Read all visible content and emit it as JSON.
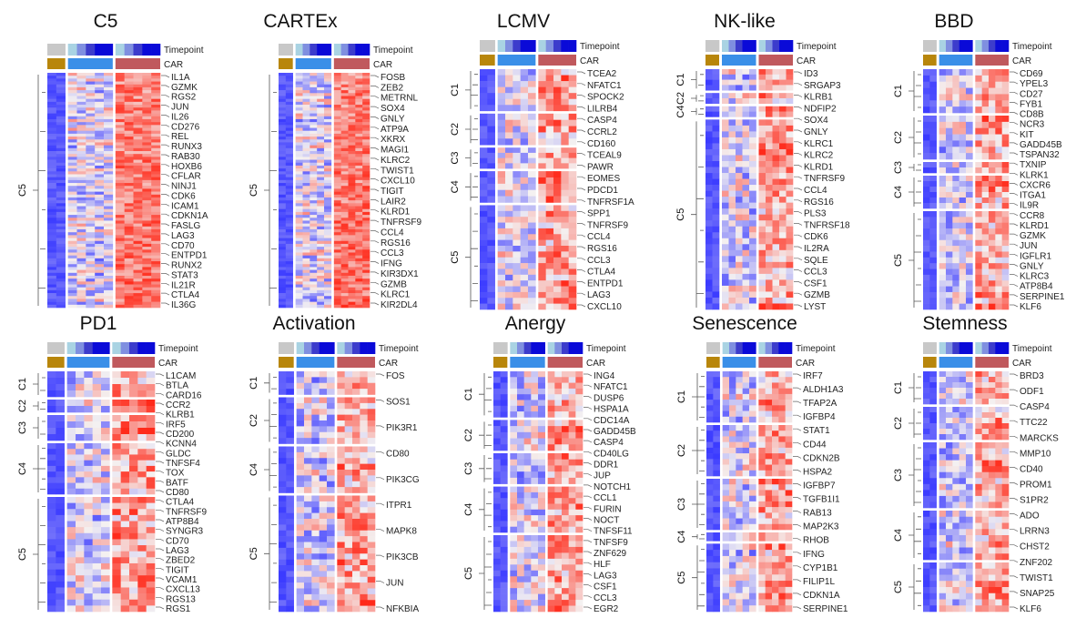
{
  "legend": {
    "timepoint": "Timepoint",
    "car": "CAR"
  },
  "colors": {
    "low": "#3b3bff",
    "mid": "#f4f1f1",
    "high": "#ff2a1a",
    "timepoint": [
      "#c8c8c8",
      "#a9d3e3",
      "#7f8fe0",
      "#3c3ccc",
      "#0a0ad8"
    ],
    "car": [
      "#b8860b",
      "#3a8fe8",
      "#c0595d"
    ]
  },
  "panels": [
    {
      "title": "C5",
      "clusters": [
        {
          "name": "C5",
          "weight": 1
        }
      ],
      "genes": [
        "IL1A",
        "GZMK",
        "RGS2",
        "JUN",
        "IL26",
        "CD276",
        "REL",
        "RUNX3",
        "RAB30",
        "HOXB6",
        "CFLAR",
        "NINJ1",
        "CDK6",
        "ICAM1",
        "CDKN1A",
        "FASLG",
        "LAG3",
        "CD70",
        "ENTPD1",
        "RUNX2",
        "STAT3",
        "IL21R",
        "CTLA4",
        "IL36G"
      ]
    },
    {
      "title": "CARTEx",
      "clusters": [
        {
          "name": "C5",
          "weight": 1
        }
      ],
      "genes": [
        "FOSB",
        "ZEB2",
        "METRNL",
        "SOX4",
        "GNLY",
        "ATP9A",
        "XKRX",
        "MAGI1",
        "KLRC2",
        "TWIST1",
        "CXCL10",
        "TIGIT",
        "LAIR2",
        "KLRD1",
        "TNFRSF9",
        "CCL4",
        "RGS16",
        "CCL3",
        "IFNG",
        "KIR3DX1",
        "GZMB",
        "KLRC1",
        "KIR2DL4"
      ]
    },
    {
      "title": "LCMV",
      "clusters": [
        {
          "name": "C1",
          "weight": 4
        },
        {
          "name": "C2",
          "weight": 3
        },
        {
          "name": "C3",
          "weight": 2
        },
        {
          "name": "C4",
          "weight": 3
        },
        {
          "name": "C5",
          "weight": 10
        }
      ],
      "genes": [
        "TCEA2",
        "NFATC1",
        "SPOCK2",
        "LILRB4",
        "CASP4",
        "CCRL2",
        "CD160",
        "TCEAL9",
        "PAWR",
        "EOMES",
        "PDCD1",
        "TNFRSF1A",
        "SPP1",
        "TNFRSF9",
        "CCL4",
        "RGS16",
        "CCL3",
        "CTLA4",
        "ENTPD1",
        "LAG3",
        "CXCL10"
      ]
    },
    {
      "title": "NK-like",
      "clusters": [
        {
          "name": "C1",
          "weight": 2
        },
        {
          "name": "C2",
          "weight": 1
        },
        {
          "name": "C4",
          "weight": 1
        },
        {
          "name": "C5",
          "weight": 18
        }
      ],
      "genes": [
        "ID3",
        "SRGAP3",
        "KLRB1",
        "NDFIP2",
        "SOX4",
        "GNLY",
        "KLRC1",
        "KLRC2",
        "KLRD1",
        "TNFRSF9",
        "CCL4",
        "RGS16",
        "PLS3",
        "TNFRSF18",
        "CDK6",
        "IL2RA",
        "SQLE",
        "CCL3",
        "CSF1",
        "GZMB",
        "LYST"
      ]
    },
    {
      "title": "BBD",
      "clusters": [
        {
          "name": "C1",
          "weight": 4
        },
        {
          "name": "C2",
          "weight": 4
        },
        {
          "name": "C3",
          "weight": 1
        },
        {
          "name": "C4",
          "weight": 3
        },
        {
          "name": "C5",
          "weight": 9
        }
      ],
      "genes": [
        "CD69",
        "YPEL3",
        "CD27",
        "FYB1",
        "CD8B",
        "NCR3",
        "KIT",
        "GADD45B",
        "TSPAN32",
        "TXNIP",
        "KLRK1",
        "CXCR6",
        "ITGA1",
        "IL9R",
        "CCR8",
        "KLRD1",
        "GZMK",
        "JUN",
        "IGFLR1",
        "GNLY",
        "KLRC3",
        "ATP8B4",
        "SERPINE1",
        "KLF6"
      ]
    },
    {
      "title": "PD1",
      "clusters": [
        {
          "name": "C1",
          "weight": 2
        },
        {
          "name": "C2",
          "weight": 1
        },
        {
          "name": "C3",
          "weight": 2
        },
        {
          "name": "C4",
          "weight": 4
        },
        {
          "name": "C5",
          "weight": 9
        }
      ],
      "genes": [
        "L1CAM",
        "BTLA",
        "CARD16",
        "CCR2",
        "KLRB1",
        "IRF5",
        "CD200",
        "KCNN4",
        "GLDC",
        "TNFSF4",
        "TOX",
        "BATF",
        "CD80",
        "CTLA4",
        "TNFRSF9",
        "ATP8B4",
        "SYNGR3",
        "CD70",
        "LAG3",
        "ZBED2",
        "TIGIT",
        "VCAM1",
        "CXCL13",
        "RGS13",
        "RGS1"
      ]
    },
    {
      "title": "Activation",
      "clusters": [
        {
          "name": "C1",
          "weight": 1
        },
        {
          "name": "C2",
          "weight": 2
        },
        {
          "name": "C4",
          "weight": 2
        },
        {
          "name": "C5",
          "weight": 5
        }
      ],
      "genes": [
        "FOS",
        "SOS1",
        "PIK3R1",
        "CD80",
        "PIK3CG",
        "ITPR1",
        "MAPK8",
        "PIK3CB",
        "JUN",
        "NFKBIA"
      ]
    },
    {
      "title": "Anergy",
      "clusters": [
        {
          "name": "C1",
          "weight": 3
        },
        {
          "name": "C2",
          "weight": 2
        },
        {
          "name": "C3",
          "weight": 2
        },
        {
          "name": "C4",
          "weight": 3
        },
        {
          "name": "C5",
          "weight": 5
        }
      ],
      "genes": [
        "ING4",
        "NFATC1",
        "DUSP6",
        "HSPA1A",
        "CDC14A",
        "GADD45B",
        "CASP4",
        "CD40LG",
        "DDR1",
        "JUP",
        "NOTCH1",
        "CCL1",
        "FURIN",
        "NOCT",
        "TNFSF11",
        "TNFSF9",
        "ZNF629",
        "HLF",
        "LAG3",
        "CSF1",
        "CCL3",
        "EGR2"
      ]
    },
    {
      "title": "Senescence",
      "clusters": [
        {
          "name": "C1",
          "weight": 3
        },
        {
          "name": "C2",
          "weight": 3
        },
        {
          "name": "C3",
          "weight": 3
        },
        {
          "name": "C4",
          "weight": 0.5
        },
        {
          "name": "C5",
          "weight": 4
        }
      ],
      "genes": [
        "IRF7",
        "ALDH1A3",
        "TFAP2A",
        "IGFBP4",
        "STAT1",
        "CD44",
        "CDKN2B",
        "HSPA2",
        "IGFBP7",
        "TGFB1I1",
        "RAB13",
        "MAP2K3",
        "RHOB",
        "IFNG",
        "CYP1B1",
        "FILIP1L",
        "CDKN1A",
        "SERPINE1"
      ]
    },
    {
      "title": "Stemness",
      "clusters": [
        {
          "name": "C1",
          "weight": 2
        },
        {
          "name": "C2",
          "weight": 2
        },
        {
          "name": "C3",
          "weight": 4
        },
        {
          "name": "C4",
          "weight": 3
        },
        {
          "name": "C5",
          "weight": 3
        }
      ],
      "genes": [
        "BRD3",
        "ODF1",
        "CASP4",
        "TTC22",
        "MARCKS",
        "MMP10",
        "CD40",
        "PROM1",
        "S1PR2",
        "ADO",
        "LRRN3",
        "CHST2",
        "ZNF202",
        "TWIST1",
        "SNAP25",
        "KLF6"
      ]
    }
  ]
}
